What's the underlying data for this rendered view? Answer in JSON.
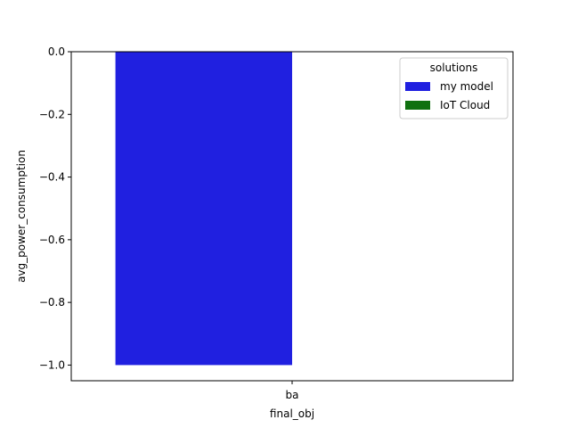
{
  "chart_data": {
    "type": "bar",
    "categories": [
      "ba"
    ],
    "series": [
      {
        "name": "my model",
        "values": [
          -1.0
        ],
        "color": "#2020e0"
      },
      {
        "name": "IoT Cloud",
        "values": [
          0.0
        ],
        "color": "#107010"
      }
    ],
    "title": "",
    "xlabel": "final_obj",
    "ylabel": "avg_power_consumption",
    "ylim": [
      -1.05,
      0.0
    ],
    "yticks": [
      0.0,
      -0.2,
      -0.4,
      -0.6,
      -0.8,
      -1.0
    ],
    "ytick_labels": [
      "0.0",
      "−0.2",
      "−0.4",
      "−0.6",
      "−0.8",
      "−1.0"
    ],
    "grid": false,
    "legend": {
      "title": "solutions",
      "placement": "upper-right"
    }
  }
}
